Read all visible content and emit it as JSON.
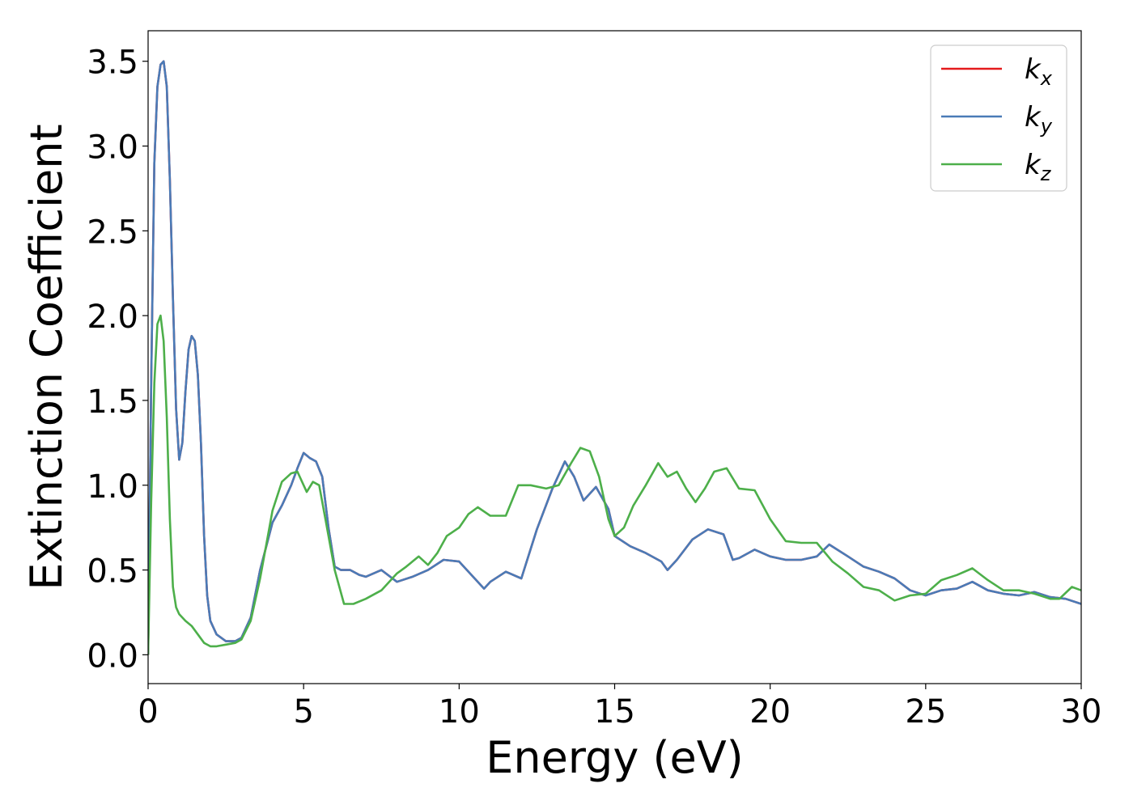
{
  "chart_data": {
    "type": "line",
    "title": "",
    "xlabel": "Energy (eV)",
    "ylabel": "Extinction Coefficient",
    "xlim": [
      0,
      30
    ],
    "ylim": [
      -0.17,
      3.68
    ],
    "xticks": [
      0,
      5,
      10,
      15,
      20,
      25,
      30
    ],
    "xtick_labels": [
      "0",
      "5",
      "10",
      "15",
      "20",
      "25",
      "30"
    ],
    "yticks": [
      0.0,
      0.5,
      1.0,
      1.5,
      2.0,
      2.5,
      3.0,
      3.5
    ],
    "ytick_labels": [
      "0.0",
      "0.5",
      "1.0",
      "1.5",
      "2.0",
      "2.5",
      "3.0",
      "3.5"
    ],
    "grid": false,
    "legend_position": "top-right",
    "series": [
      {
        "name": "k",
        "subscript": "x",
        "color": "#e41a1c",
        "x": [
          0,
          0.1,
          0.2,
          0.3,
          0.4,
          0.5,
          0.6,
          0.7,
          0.8,
          0.9,
          1.0,
          1.1,
          1.2,
          1.3,
          1.4,
          1.5,
          1.6,
          1.7,
          1.8,
          1.9,
          2.0,
          2.2,
          2.5,
          2.8,
          3.0,
          3.3,
          3.6,
          4.0,
          4.3,
          4.6,
          4.8,
          5.0,
          5.2,
          5.4,
          5.6,
          5.8,
          6.0,
          6.2,
          6.5,
          6.8,
          7.0,
          7.5,
          8.0,
          8.5,
          9.0,
          9.5,
          10.0,
          10.5,
          10.8,
          11.0,
          11.5,
          12.0,
          12.5,
          13.0,
          13.4,
          13.7,
          14.0,
          14.4,
          14.8,
          15.0,
          15.5,
          16.0,
          16.5,
          16.7,
          17.0,
          17.5,
          18.0,
          18.5,
          18.8,
          19.0,
          19.5,
          20.0,
          20.5,
          21.0,
          21.5,
          21.9,
          22.5,
          23.0,
          23.5,
          24.0,
          24.5,
          25.0,
          25.5,
          26.0,
          26.5,
          27.0,
          27.5,
          28.0,
          28.5,
          29.0,
          29.5,
          30.0
        ],
        "y": [
          0.0,
          1.6,
          2.9,
          3.35,
          3.48,
          3.5,
          3.35,
          2.8,
          2.1,
          1.45,
          1.15,
          1.25,
          1.55,
          1.8,
          1.88,
          1.85,
          1.65,
          1.25,
          0.7,
          0.35,
          0.2,
          0.12,
          0.08,
          0.08,
          0.1,
          0.22,
          0.5,
          0.78,
          0.88,
          1.0,
          1.1,
          1.19,
          1.16,
          1.14,
          1.05,
          0.75,
          0.52,
          0.5,
          0.5,
          0.47,
          0.46,
          0.5,
          0.43,
          0.46,
          0.5,
          0.56,
          0.55,
          0.45,
          0.39,
          0.43,
          0.49,
          0.45,
          0.74,
          0.98,
          1.14,
          1.05,
          0.91,
          0.99,
          0.86,
          0.7,
          0.64,
          0.6,
          0.55,
          0.5,
          0.56,
          0.68,
          0.74,
          0.71,
          0.56,
          0.57,
          0.62,
          0.58,
          0.56,
          0.56,
          0.58,
          0.65,
          0.58,
          0.52,
          0.49,
          0.45,
          0.38,
          0.35,
          0.38,
          0.39,
          0.43,
          0.38,
          0.36,
          0.35,
          0.37,
          0.34,
          0.33,
          0.3
        ]
      },
      {
        "name": "k",
        "subscript": "y",
        "color": "#4a7bb7",
        "x": [
          0,
          0.1,
          0.2,
          0.3,
          0.4,
          0.5,
          0.6,
          0.7,
          0.8,
          0.9,
          1.0,
          1.1,
          1.2,
          1.3,
          1.4,
          1.5,
          1.6,
          1.7,
          1.8,
          1.9,
          2.0,
          2.2,
          2.5,
          2.8,
          3.0,
          3.3,
          3.6,
          4.0,
          4.3,
          4.6,
          4.8,
          5.0,
          5.2,
          5.4,
          5.6,
          5.8,
          6.0,
          6.2,
          6.5,
          6.8,
          7.0,
          7.5,
          8.0,
          8.5,
          9.0,
          9.5,
          10.0,
          10.5,
          10.8,
          11.0,
          11.5,
          12.0,
          12.5,
          13.0,
          13.4,
          13.7,
          14.0,
          14.4,
          14.8,
          15.0,
          15.5,
          16.0,
          16.5,
          16.7,
          17.0,
          17.5,
          18.0,
          18.5,
          18.8,
          19.0,
          19.5,
          20.0,
          20.5,
          21.0,
          21.5,
          21.9,
          22.5,
          23.0,
          23.5,
          24.0,
          24.5,
          25.0,
          25.5,
          26.0,
          26.5,
          27.0,
          27.5,
          28.0,
          28.5,
          29.0,
          29.5,
          30.0
        ],
        "y": [
          0.0,
          1.6,
          2.9,
          3.35,
          3.48,
          3.5,
          3.35,
          2.8,
          2.1,
          1.45,
          1.15,
          1.25,
          1.55,
          1.8,
          1.88,
          1.85,
          1.65,
          1.25,
          0.7,
          0.35,
          0.2,
          0.12,
          0.08,
          0.08,
          0.1,
          0.22,
          0.5,
          0.78,
          0.88,
          1.0,
          1.1,
          1.19,
          1.16,
          1.14,
          1.05,
          0.75,
          0.52,
          0.5,
          0.5,
          0.47,
          0.46,
          0.5,
          0.43,
          0.46,
          0.5,
          0.56,
          0.55,
          0.45,
          0.39,
          0.43,
          0.49,
          0.45,
          0.74,
          0.98,
          1.14,
          1.05,
          0.91,
          0.99,
          0.86,
          0.7,
          0.64,
          0.6,
          0.55,
          0.5,
          0.56,
          0.68,
          0.74,
          0.71,
          0.56,
          0.57,
          0.62,
          0.58,
          0.56,
          0.56,
          0.58,
          0.65,
          0.58,
          0.52,
          0.49,
          0.45,
          0.38,
          0.35,
          0.38,
          0.39,
          0.43,
          0.38,
          0.36,
          0.35,
          0.37,
          0.34,
          0.33,
          0.3
        ]
      },
      {
        "name": "k",
        "subscript": "z",
        "color": "#4daf4a",
        "x": [
          0,
          0.1,
          0.2,
          0.3,
          0.4,
          0.5,
          0.6,
          0.7,
          0.8,
          0.9,
          1.0,
          1.2,
          1.4,
          1.6,
          1.8,
          2.0,
          2.2,
          2.5,
          2.8,
          3.0,
          3.3,
          3.6,
          4.0,
          4.3,
          4.6,
          4.8,
          5.0,
          5.1,
          5.3,
          5.5,
          5.7,
          6.0,
          6.3,
          6.6,
          7.0,
          7.5,
          8.0,
          8.3,
          8.7,
          9.0,
          9.3,
          9.6,
          10.0,
          10.3,
          10.6,
          11.0,
          11.5,
          11.9,
          12.3,
          12.8,
          13.2,
          13.6,
          13.9,
          14.2,
          14.5,
          14.8,
          15.0,
          15.3,
          15.6,
          16.0,
          16.4,
          16.7,
          17.0,
          17.3,
          17.6,
          17.9,
          18.2,
          18.6,
          19.0,
          19.5,
          20.0,
          20.5,
          21.0,
          21.5,
          22.0,
          22.5,
          23.0,
          23.5,
          24.0,
          24.5,
          25.0,
          25.5,
          26.0,
          26.5,
          27.0,
          27.5,
          28.0,
          28.5,
          29.0,
          29.3,
          29.7,
          30.0
        ],
        "y": [
          0.0,
          0.9,
          1.6,
          1.95,
          2.0,
          1.85,
          1.4,
          0.8,
          0.4,
          0.28,
          0.24,
          0.2,
          0.17,
          0.12,
          0.07,
          0.05,
          0.05,
          0.06,
          0.07,
          0.09,
          0.2,
          0.45,
          0.85,
          1.02,
          1.07,
          1.08,
          1.0,
          0.96,
          1.02,
          1.0,
          0.8,
          0.5,
          0.3,
          0.3,
          0.33,
          0.38,
          0.48,
          0.52,
          0.58,
          0.53,
          0.6,
          0.7,
          0.75,
          0.83,
          0.87,
          0.82,
          0.82,
          1.0,
          1.0,
          0.98,
          1.0,
          1.13,
          1.22,
          1.2,
          1.05,
          0.8,
          0.7,
          0.75,
          0.88,
          1.0,
          1.13,
          1.05,
          1.08,
          0.98,
          0.9,
          0.98,
          1.08,
          1.1,
          0.98,
          0.97,
          0.8,
          0.67,
          0.66,
          0.66,
          0.55,
          0.48,
          0.4,
          0.38,
          0.32,
          0.35,
          0.36,
          0.44,
          0.47,
          0.51,
          0.44,
          0.38,
          0.38,
          0.36,
          0.33,
          0.33,
          0.4,
          0.38
        ]
      }
    ]
  }
}
